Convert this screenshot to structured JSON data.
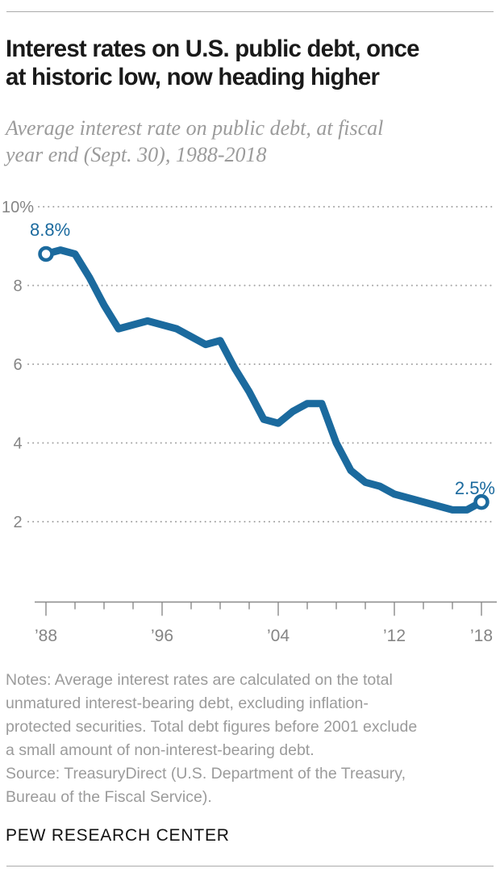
{
  "header": {
    "title_lines": [
      "Interest rates on U.S. public debt, once",
      "at historic low, now heading higher"
    ],
    "subtitle_lines": [
      "Average interest rate on public debt, at fiscal",
      "year end (Sept. 30), 1988-2018"
    ]
  },
  "chart_data": {
    "type": "line",
    "title": "Interest rates on U.S. public debt, once at historic low, now heading higher",
    "subtitle": "Average interest rate on public debt, at fiscal year end (Sept. 30), 1988-2018",
    "x_start": 1988,
    "x_end": 2018,
    "years": [
      1988,
      1989,
      1990,
      1991,
      1992,
      1993,
      1994,
      1995,
      1996,
      1997,
      1998,
      1999,
      2000,
      2001,
      2002,
      2003,
      2004,
      2005,
      2006,
      2007,
      2008,
      2009,
      2010,
      2011,
      2012,
      2013,
      2014,
      2015,
      2016,
      2017,
      2018
    ],
    "values": [
      8.8,
      8.9,
      8.8,
      8.2,
      7.5,
      6.9,
      7.0,
      7.1,
      7.0,
      6.9,
      6.7,
      6.5,
      6.6,
      5.9,
      5.3,
      4.6,
      4.5,
      4.8,
      5.0,
      5.0,
      4.0,
      3.3,
      3.0,
      2.9,
      2.7,
      2.6,
      2.5,
      2.4,
      2.3,
      2.3,
      2.5
    ],
    "ylabel": "",
    "xlabel": "",
    "ylim_shown": [
      2,
      10
    ],
    "grid": "dotted-horizontal",
    "legend": "none",
    "y_ticks": [
      {
        "value": 10,
        "label": "10%"
      },
      {
        "value": 8,
        "label": "8"
      },
      {
        "value": 6,
        "label": "6"
      },
      {
        "value": 4,
        "label": "4"
      },
      {
        "value": 2,
        "label": "2"
      }
    ],
    "x_tick_step_years": 2,
    "x_tick_labels": [
      {
        "year": 1988,
        "label": "’88"
      },
      {
        "year": 1996,
        "label": "’96"
      },
      {
        "year": 2004,
        "label": "’04"
      },
      {
        "year": 2012,
        "label": "’12"
      },
      {
        "year": 2018,
        "label": "’18"
      }
    ],
    "point_labels": {
      "start": "8.8%",
      "end": "2.5%"
    }
  },
  "notes": {
    "lines": [
      "Notes: Average interest rates are calculated on the total",
      "unmatured interest-bearing debt, excluding inflation-",
      "protected securities. Total debt figures before 2001 exclude",
      "a small amount of non-interest-bearing debt.",
      "Source: TreasuryDirect (U.S. Department of the Treasury,",
      "Bureau of the Fiscal Service)."
    ]
  },
  "footer": {
    "wordmark": "PEW RESEARCH CENTER"
  },
  "colors": {
    "accent_blue": "#1b6a9e",
    "grid_dot": "#a3a3a3",
    "axis": "#8a8a8a",
    "axis_label": "#858585",
    "title_text": "#1a1a1a",
    "muted_text": "#9b9b9b",
    "rule": "#ababab",
    "background": "#ffffff"
  }
}
